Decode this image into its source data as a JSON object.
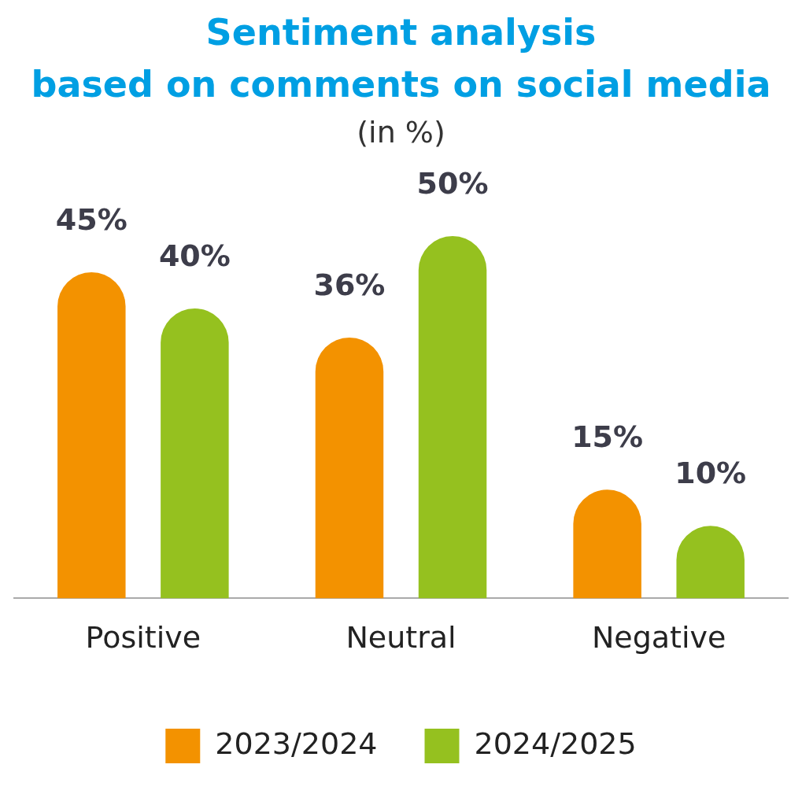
{
  "chart_data": {
    "type": "bar",
    "title": "Sentiment analysis\nbased on comments on social media",
    "subtitle": "(in %)",
    "categories": [
      "Positive",
      "Neutral",
      "Negative"
    ],
    "series": [
      {
        "name": "2023/2024",
        "color": "#f39200",
        "values": [
          45,
          36,
          15
        ],
        "value_labels": [
          "45%",
          "36%",
          "15%"
        ]
      },
      {
        "name": "2024/2025",
        "color": "#95c11f",
        "values": [
          40,
          50,
          10
        ],
        "value_labels": [
          "40%",
          "50%",
          "10%"
        ]
      }
    ],
    "tick_labels": "x",
    "legend": "bottom",
    "grid": false
  }
}
